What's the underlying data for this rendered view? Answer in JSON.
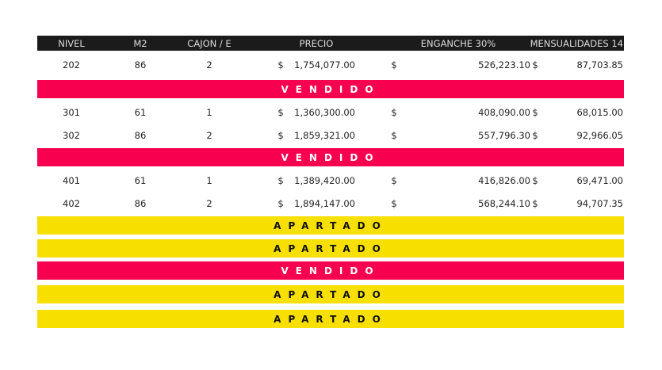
{
  "header": [
    "NIVEL",
    "M2",
    "CAJON / E",
    "PRECIO",
    "ENGANCHE 30%",
    "MENSUALIDADES 14"
  ],
  "currency": "$",
  "colors": {
    "vendido": "#f7004f",
    "apartado": "#f7df00",
    "header": "#1b1b1b"
  },
  "rows": [
    {
      "type": "unit",
      "nivel": "202",
      "m2": "86",
      "cajon": "2",
      "precio": "1,754,077.00",
      "enganche": "526,223.10",
      "mensualidad": "87,703.85"
    },
    {
      "type": "vendido",
      "label": "VENDIDO"
    },
    {
      "type": "unit",
      "nivel": "301",
      "m2": "61",
      "cajon": "1",
      "precio": "1,360,300.00",
      "enganche": "408,090.00",
      "mensualidad": "68,015.00"
    },
    {
      "type": "unit",
      "nivel": "302",
      "m2": "86",
      "cajon": "2",
      "precio": "1,859,321.00",
      "enganche": "557,796.30",
      "mensualidad": "92,966.05"
    },
    {
      "type": "vendido",
      "label": "VENDIDO"
    },
    {
      "type": "unit",
      "nivel": "401",
      "m2": "61",
      "cajon": "1",
      "precio": "1,389,420.00",
      "enganche": "416,826.00",
      "mensualidad": "69,471.00"
    },
    {
      "type": "unit",
      "nivel": "402",
      "m2": "86",
      "cajon": "2",
      "precio": "1,894,147.00",
      "enganche": "568,244.10",
      "mensualidad": "94,707.35"
    },
    {
      "type": "apartado",
      "label": "APARTADO"
    },
    {
      "type": "apartado",
      "label": "APARTADO"
    },
    {
      "type": "vendido",
      "label": "VENDIDO"
    },
    {
      "type": "apartado",
      "label": "APARTADO"
    },
    {
      "type": "apartado",
      "label": "APARTADO"
    }
  ]
}
